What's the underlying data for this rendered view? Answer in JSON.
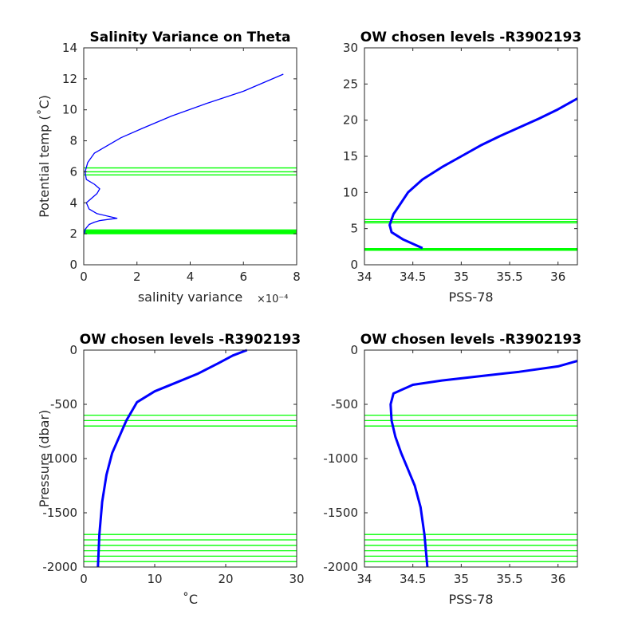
{
  "colors": {
    "data": "#0000ff",
    "levels": "#00ff00",
    "axes": "#262626",
    "background": "#ffffff"
  },
  "chart_data": [
    {
      "type": "line",
      "title": "Salinity Variance on Theta",
      "xlabel": "salinity variance",
      "xlabel_multiplier": "×10⁻⁴",
      "ylabel": "Potential temp (˚C)",
      "xlim": [
        0,
        8
      ],
      "ylim": [
        0,
        14
      ],
      "xticks": [
        "0",
        "2",
        "4",
        "6",
        "8"
      ],
      "yticks": [
        "0",
        "2",
        "4",
        "6",
        "8",
        "10",
        "12",
        "14"
      ],
      "series": [
        {
          "x": [
            0.02,
            0.06,
            0.2,
            0.4,
            0.6,
            1.25,
            0.5,
            0.2,
            0.1,
            0.3,
            0.5,
            0.6,
            0.4,
            0.1,
            0.05,
            0.15,
            0.4,
            0.8,
            1.4,
            2.2,
            3.3,
            4.6,
            6.0,
            7.5
          ],
          "y": [
            2.0,
            2.3,
            2.6,
            2.75,
            2.85,
            3.0,
            3.3,
            3.6,
            4.0,
            4.3,
            4.6,
            4.9,
            5.2,
            5.5,
            6.0,
            6.6,
            7.2,
            7.6,
            8.2,
            8.8,
            9.6,
            10.4,
            11.2,
            12.3
          ]
        }
      ],
      "chosen_levels": [
        2.0,
        2.05,
        2.1,
        2.15,
        2.2,
        2.25,
        5.8,
        6.0,
        6.25
      ]
    },
    {
      "type": "line",
      "title": "OW chosen levels -R3902193",
      "xlabel": "PSS-78",
      "ylabel": "",
      "xlim": [
        34,
        36.2
      ],
      "ylim": [
        0,
        30
      ],
      "xticks": [
        "34",
        "34.5",
        "35",
        "35.5",
        "36"
      ],
      "yticks": [
        "0",
        "5",
        "10",
        "15",
        "20",
        "25",
        "30"
      ],
      "series": [
        {
          "x": [
            34.6,
            34.4,
            34.28,
            34.26,
            34.3,
            34.35,
            34.45,
            34.6,
            34.8,
            35.0,
            35.2,
            35.4,
            35.6,
            35.8,
            36.0,
            36.2
          ],
          "y": [
            2.3,
            3.5,
            4.5,
            5.5,
            7,
            8,
            10,
            11.8,
            13.5,
            15,
            16.5,
            17.8,
            19,
            20.2,
            21.5,
            23
          ]
        }
      ],
      "chosen_levels": [
        2.0,
        2.05,
        2.1,
        2.15,
        2.2,
        2.25,
        5.8,
        6.0,
        6.25
      ]
    },
    {
      "type": "line",
      "title": "OW chosen levels -R3902193",
      "xlabel": "˚C",
      "ylabel": "Pressure (dbar)",
      "xlim": [
        0,
        30
      ],
      "ylim": [
        -2000,
        0
      ],
      "xticks": [
        "0",
        "10",
        "20",
        "30"
      ],
      "yticks": [
        "-2000",
        "-1500",
        "-1000",
        "-500",
        "0"
      ],
      "series": [
        {
          "x": [
            2.0,
            2.2,
            2.6,
            3.2,
            4.0,
            5.0,
            6.0,
            7.5,
            10,
            13,
            16,
            19,
            21,
            23
          ],
          "y": [
            -2000,
            -1700,
            -1400,
            -1150,
            -950,
            -800,
            -650,
            -480,
            -380,
            -300,
            -220,
            -120,
            -50,
            0
          ]
        }
      ],
      "chosen_levels": [
        -600,
        -650,
        -700,
        -1700,
        -1750,
        -1800,
        -1850,
        -1900,
        -1950
      ]
    },
    {
      "type": "line",
      "title": "OW chosen levels -R3902193",
      "xlabel": "PSS-78",
      "ylabel": "",
      "xlim": [
        34,
        36.2
      ],
      "ylim": [
        -2000,
        0
      ],
      "xticks": [
        "34",
        "34.5",
        "35",
        "35.5",
        "36"
      ],
      "yticks": [
        "-2000",
        "-1500",
        "-1000",
        "-500",
        "0"
      ],
      "series": [
        {
          "x": [
            34.65,
            34.62,
            34.58,
            34.52,
            34.45,
            34.38,
            34.32,
            34.28,
            34.27,
            34.3,
            34.5,
            34.8,
            35.2,
            35.6,
            36.0,
            36.2
          ],
          "y": [
            -2000,
            -1700,
            -1450,
            -1250,
            -1100,
            -950,
            -800,
            -650,
            -500,
            -400,
            -320,
            -280,
            -240,
            -200,
            -150,
            -100
          ]
        }
      ],
      "chosen_levels": [
        -600,
        -650,
        -700,
        -1700,
        -1750,
        -1800,
        -1850,
        -1900,
        -1950
      ]
    }
  ]
}
